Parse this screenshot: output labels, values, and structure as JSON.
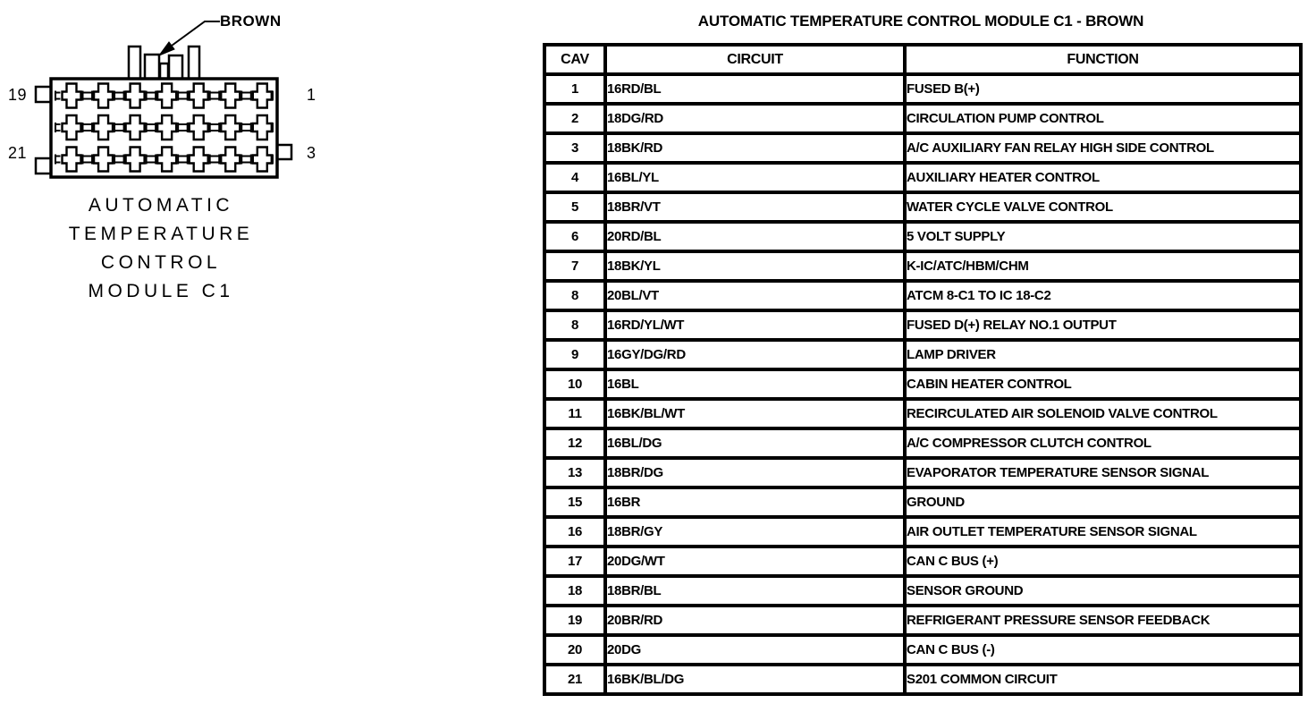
{
  "connector": {
    "color_label": "BROWN",
    "pin_labels": {
      "top_left": "19",
      "bottom_left": "21",
      "top_right": "1",
      "bottom_right": "3"
    },
    "caption_lines": [
      "AUTOMATIC",
      "TEMPERATURE",
      "CONTROL",
      "MODULE C1"
    ]
  },
  "table": {
    "title": "AUTOMATIC TEMPERATURE CONTROL MODULE C1 - BROWN",
    "headers": {
      "cav": "CAV",
      "circuit": "CIRCUIT",
      "function": "FUNCTION"
    },
    "rows": [
      {
        "cav": "1",
        "circuit": "16RD/BL",
        "function": "FUSED B(+)"
      },
      {
        "cav": "2",
        "circuit": "18DG/RD",
        "function": "CIRCULATION PUMP CONTROL"
      },
      {
        "cav": "3",
        "circuit": "18BK/RD",
        "function": "A/C AUXILIARY FAN RELAY HIGH SIDE CONTROL"
      },
      {
        "cav": "4",
        "circuit": "16BL/YL",
        "function": "AUXILIARY HEATER CONTROL"
      },
      {
        "cav": "5",
        "circuit": "18BR/VT",
        "function": "WATER CYCLE VALVE CONTROL"
      },
      {
        "cav": "6",
        "circuit": "20RD/BL",
        "function": "5 VOLT SUPPLY"
      },
      {
        "cav": "7",
        "circuit": "18BK/YL",
        "function": "K-IC/ATC/HBM/CHM"
      },
      {
        "cav": "8",
        "circuit": "20BL/VT",
        "function": "ATCM 8-C1 TO IC 18-C2"
      },
      {
        "cav": "8",
        "circuit": "16RD/YL/WT",
        "function": "FUSED D(+) RELAY NO.1 OUTPUT"
      },
      {
        "cav": "9",
        "circuit": "16GY/DG/RD",
        "function": "LAMP DRIVER"
      },
      {
        "cav": "10",
        "circuit": "16BL",
        "function": "CABIN HEATER CONTROL"
      },
      {
        "cav": "11",
        "circuit": "16BK/BL/WT",
        "function": "RECIRCULATED AIR SOLENOID VALVE CONTROL"
      },
      {
        "cav": "12",
        "circuit": "16BL/DG",
        "function": "A/C COMPRESSOR CLUTCH CONTROL"
      },
      {
        "cav": "13",
        "circuit": "18BR/DG",
        "function": "EVAPORATOR TEMPERATURE SENSOR SIGNAL"
      },
      {
        "cav": "15",
        "circuit": "16BR",
        "function": "GROUND"
      },
      {
        "cav": "16",
        "circuit": "18BR/GY",
        "function": "AIR OUTLET TEMPERATURE SENSOR SIGNAL"
      },
      {
        "cav": "17",
        "circuit": "20DG/WT",
        "function": "CAN C BUS (+)"
      },
      {
        "cav": "18",
        "circuit": "18BR/BL",
        "function": "SENSOR GROUND"
      },
      {
        "cav": "19",
        "circuit": "20BR/RD",
        "function": "REFRIGERANT PRESSURE SENSOR FEEDBACK"
      },
      {
        "cav": "20",
        "circuit": "20DG",
        "function": "CAN C BUS (-)"
      },
      {
        "cav": "21",
        "circuit": "16BK/BL/DG",
        "function": "S201 COMMON CIRCUIT"
      }
    ]
  },
  "colors": {
    "ink": "#000000",
    "paper": "#ffffff"
  }
}
